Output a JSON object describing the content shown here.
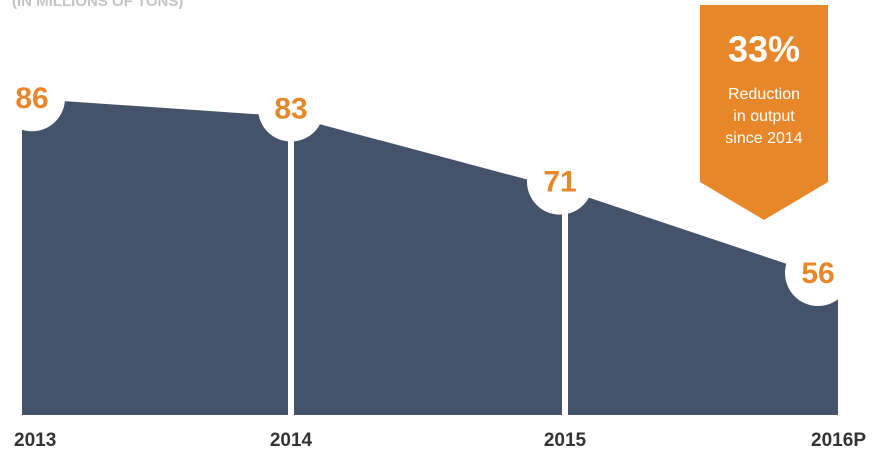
{
  "chart_data": {
    "type": "area",
    "subtitle": "(IN MILLIONS OF TONS)",
    "categories": [
      "2013",
      "2014",
      "2015",
      "2016P"
    ],
    "values": [
      86,
      83,
      71,
      56
    ],
    "color": "#44536a",
    "label_color": "#e8872a",
    "ylim": [
      34,
      100
    ],
    "annotation": {
      "value": "33%",
      "lines": [
        "Reduction",
        "in output",
        "since 2014"
      ],
      "color": "#e8872a"
    }
  }
}
